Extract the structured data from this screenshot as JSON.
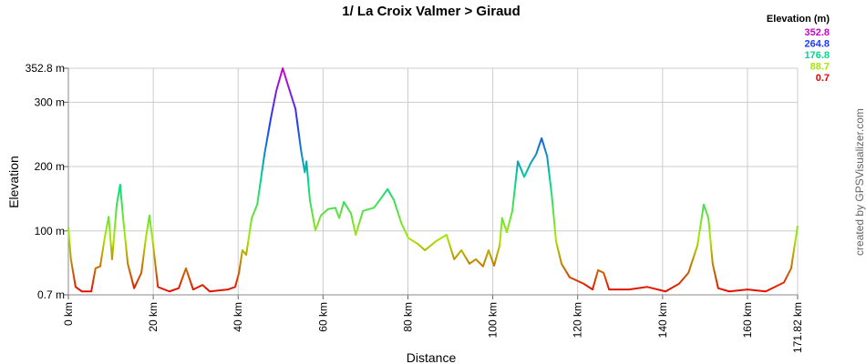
{
  "chart_data": {
    "type": "line",
    "title": "1/ La Croix Valmer > Giraud",
    "x_label": "Distance",
    "y_label": "Elevation",
    "credit": "created by GPSVisualizer.com",
    "legend": {
      "title": "Elevation (m)",
      "stops": [
        {
          "value": 352.8,
          "color": "#d100d1"
        },
        {
          "value": 264.8,
          "color": "#1a3cff"
        },
        {
          "value": 176.8,
          "color": "#00d890"
        },
        {
          "value": 88.7,
          "color": "#a6e800"
        },
        {
          "value": 0.7,
          "color": "#e80000"
        }
      ]
    },
    "grid": true,
    "xlim": [
      0,
      171.82
    ],
    "ylim": [
      0.7,
      352.8
    ],
    "xticks": [
      {
        "value": 0,
        "label": "0 km"
      },
      {
        "value": 20,
        "label": "20 km"
      },
      {
        "value": 40,
        "label": "40 km"
      },
      {
        "value": 60,
        "label": "60 km"
      },
      {
        "value": 80,
        "label": "80 km"
      },
      {
        "value": 100,
        "label": "100 km"
      },
      {
        "value": 120,
        "label": "120 km"
      },
      {
        "value": 140,
        "label": "140 km"
      },
      {
        "value": 160,
        "label": "160 km"
      },
      {
        "value": 171.82,
        "label": "171.82 km"
      }
    ],
    "yticks": [
      {
        "value": 0.7,
        "label": "0.7 m"
      },
      {
        "value": 100,
        "label": "100 m"
      },
      {
        "value": 200,
        "label": "200 m"
      },
      {
        "value": 300,
        "label": "300 m"
      },
      {
        "value": 352.8,
        "label": "352.8 m"
      }
    ],
    "x": [
      0,
      0.6,
      1.7,
      3.2,
      5.4,
      6.4,
      7.5,
      8.6,
      9.5,
      10.3,
      11.4,
      12.2,
      12.9,
      14.0,
      15.5,
      17.2,
      18.3,
      19.1,
      20.0,
      21.1,
      22.6,
      23.8,
      26.0,
      27.7,
      29.4,
      31.6,
      33.3,
      37.6,
      39.3,
      40.2,
      41.0,
      41.9,
      43.2,
      44.5,
      46.2,
      47.7,
      49.0,
      50.5,
      52.0,
      53.5,
      54.8,
      55.7,
      56.1,
      56.9,
      58.2,
      59.5,
      61.2,
      62.9,
      63.8,
      64.9,
      66.6,
      67.7,
      69.4,
      72.0,
      73.7,
      75.2,
      76.7,
      78.4,
      80.1,
      82.3,
      84.0,
      86.6,
      89.1,
      90.9,
      92.6,
      94.5,
      96.0,
      97.7,
      99.0,
      100.3,
      101.6,
      102.2,
      103.3,
      104.6,
      105.9,
      107.4,
      108.9,
      110.2,
      111.5,
      112.8,
      113.9,
      114.9,
      116.2,
      118.1,
      121.4,
      123.5,
      124.8,
      126.1,
      127.4,
      132.1,
      136.4,
      140.7,
      143.9,
      146.1,
      148.2,
      149.7,
      150.8,
      151.8,
      153.1,
      155.7,
      160.0,
      164.3,
      168.6,
      170.3,
      171.82
    ],
    "values": [
      105,
      56,
      13,
      6,
      6,
      42,
      45,
      91,
      122,
      56,
      141,
      172,
      120,
      49,
      11,
      35,
      91,
      124,
      77,
      13,
      9,
      6,
      11,
      42,
      9,
      16,
      6,
      9,
      13,
      35,
      70,
      63,
      120,
      141,
      219,
      275,
      318,
      352.8,
      321,
      290,
      226,
      191,
      208,
      148,
      101,
      124,
      134,
      136,
      120,
      145,
      127,
      94,
      131,
      136,
      151,
      165,
      148,
      113,
      89,
      80,
      70,
      84,
      94,
      56,
      70,
      49,
      56,
      45,
      70,
      46,
      77,
      120,
      98,
      131,
      208,
      184,
      205,
      219,
      244,
      216,
      155,
      84,
      49,
      28,
      18,
      9,
      39,
      35,
      9,
      9,
      13,
      6,
      18,
      35,
      77,
      141,
      120,
      49,
      11,
      6,
      9,
      6,
      20,
      42,
      108
    ]
  }
}
